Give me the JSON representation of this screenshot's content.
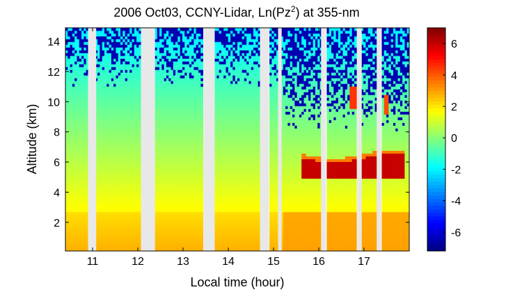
{
  "chart_data": {
    "type": "heatmap",
    "title_parts": {
      "prefix": "2006 Oct03, CCNY-Lidar, Ln(Pz",
      "superscript": "2",
      "suffix": ") at 355-nm"
    },
    "xlabel": "Local time (hour)",
    "ylabel": "Altitude (km)",
    "xlim": [
      10.4,
      18.0
    ],
    "ylim": [
      0.1,
      14.9
    ],
    "x_ticks": [
      11,
      12,
      13,
      14,
      15,
      16,
      17
    ],
    "x_tick_labels": [
      "11",
      "12",
      "13",
      "14",
      "15",
      "16",
      "17"
    ],
    "y_ticks": [
      2,
      4,
      6,
      8,
      10,
      12,
      14
    ],
    "y_tick_labels": [
      "2",
      "4",
      "6",
      "8",
      "10",
      "12",
      "14"
    ],
    "colorbar": {
      "range": [
        -7.2,
        7.0
      ],
      "ticks": [
        6,
        4,
        2,
        0,
        -2,
        -4,
        -6
      ],
      "tick_labels": [
        "6",
        "4",
        "2",
        "0",
        "-2",
        "-4",
        "-6"
      ],
      "colormap": "jet"
    },
    "data_gaps_hours": [
      [
        10.9,
        11.08
      ],
      [
        12.07,
        12.38
      ],
      [
        13.45,
        13.7
      ],
      [
        14.7,
        14.9
      ],
      [
        15.1,
        15.18
      ],
      [
        16.05,
        16.16
      ],
      [
        16.85,
        16.95
      ],
      [
        17.28,
        17.38
      ]
    ],
    "aerosol_layer": {
      "time_range": [
        15.6,
        17.9
      ],
      "altitude_range_km": [
        4.9,
        6.3
      ],
      "value": 6.0
    },
    "boundary_layer_top_km": 2.6,
    "gap_color": "#e8e8e8"
  }
}
